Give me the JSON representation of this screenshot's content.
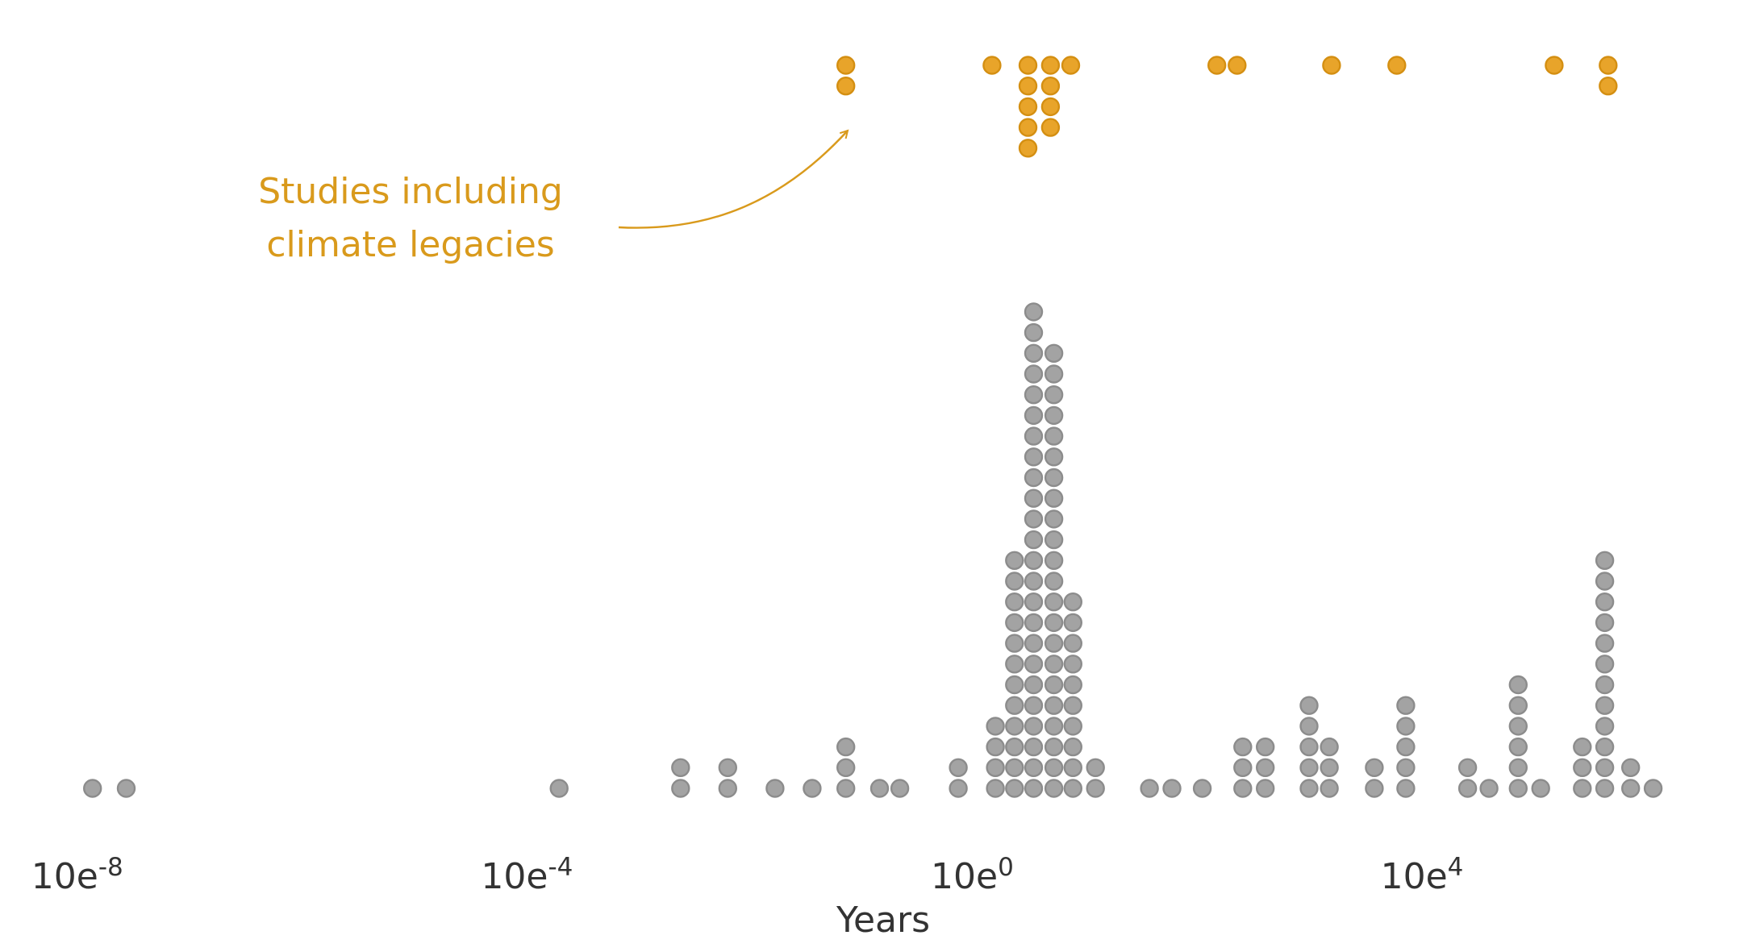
{
  "chart_data": {
    "type": "scatter",
    "subtype": "dot-strip (beeswarm) on log10 axis",
    "xlabel": "Years",
    "xscale": "log10",
    "xlim": [
      -8.6,
      6.2
    ],
    "ticks": [
      {
        "value": -8,
        "base": "10e",
        "exp": "-8"
      },
      {
        "value": -4,
        "base": "10e",
        "exp": "-4"
      },
      {
        "value": 0,
        "base": "10e",
        "exp": "0"
      },
      {
        "value": 4,
        "base": "10e",
        "exp": "4"
      }
    ],
    "grid": false,
    "colors": {
      "all_fill": "#a3a3a3",
      "all_stroke": "#8c8c8c",
      "climate_fill": "#e8a42a",
      "climate_stroke": "#d48f12",
      "annotation": "#d99a1c",
      "text": "#333333"
    },
    "annotation": {
      "lines": [
        "Studies including",
        "climate legacies"
      ],
      "points_to": "climate-legacy dots"
    },
    "series": [
      {
        "group": "all studies",
        "points": [
          {
            "log10_years": -7.85,
            "count": 1
          },
          {
            "log10_years": -7.55,
            "count": 1
          },
          {
            "log10_years": -3.7,
            "count": 1
          },
          {
            "log10_years": -2.62,
            "count": 2
          },
          {
            "log10_years": -2.2,
            "count": 2
          },
          {
            "log10_years": -1.78,
            "count": 1
          },
          {
            "log10_years": -1.45,
            "count": 1
          },
          {
            "log10_years": -1.15,
            "count": 3
          },
          {
            "log10_years": -0.85,
            "count": 1
          },
          {
            "log10_years": -0.67,
            "count": 1
          },
          {
            "log10_years": -0.15,
            "count": 2
          },
          {
            "log10_years": 0.18,
            "count": 4
          },
          {
            "log10_years": 0.35,
            "count": 12
          },
          {
            "log10_years": 0.52,
            "count": 24
          },
          {
            "log10_years": 0.7,
            "count": 22
          },
          {
            "log10_years": 0.87,
            "count": 10
          },
          {
            "log10_years": 1.07,
            "count": 2
          },
          {
            "log10_years": 1.55,
            "count": 1
          },
          {
            "log10_years": 1.75,
            "count": 1
          },
          {
            "log10_years": 2.02,
            "count": 1
          },
          {
            "log10_years": 2.38,
            "count": 3
          },
          {
            "log10_years": 2.58,
            "count": 3
          },
          {
            "log10_years": 2.97,
            "count": 5
          },
          {
            "log10_years": 3.15,
            "count": 3
          },
          {
            "log10_years": 3.55,
            "count": 2
          },
          {
            "log10_years": 3.83,
            "count": 5
          },
          {
            "log10_years": 4.38,
            "count": 2
          },
          {
            "log10_years": 4.57,
            "count": 1
          },
          {
            "log10_years": 4.83,
            "count": 6
          },
          {
            "log10_years": 5.03,
            "count": 1
          },
          {
            "log10_years": 5.4,
            "count": 3
          },
          {
            "log10_years": 5.6,
            "count": 12
          },
          {
            "log10_years": 5.83,
            "count": 2
          },
          {
            "log10_years": 6.03,
            "count": 1
          }
        ]
      },
      {
        "group": "climate legacies",
        "points": [
          {
            "log10_years": -1.15,
            "count": 2
          },
          {
            "log10_years": 0.15,
            "count": 1
          },
          {
            "log10_years": 0.47,
            "count": 5
          },
          {
            "log10_years": 0.67,
            "count": 4
          },
          {
            "log10_years": 0.85,
            "count": 1
          },
          {
            "log10_years": 2.15,
            "count": 1
          },
          {
            "log10_years": 2.33,
            "count": 1
          },
          {
            "log10_years": 3.17,
            "count": 1
          },
          {
            "log10_years": 3.75,
            "count": 1
          },
          {
            "log10_years": 5.15,
            "count": 1
          },
          {
            "log10_years": 5.63,
            "count": 2
          }
        ]
      }
    ]
  }
}
